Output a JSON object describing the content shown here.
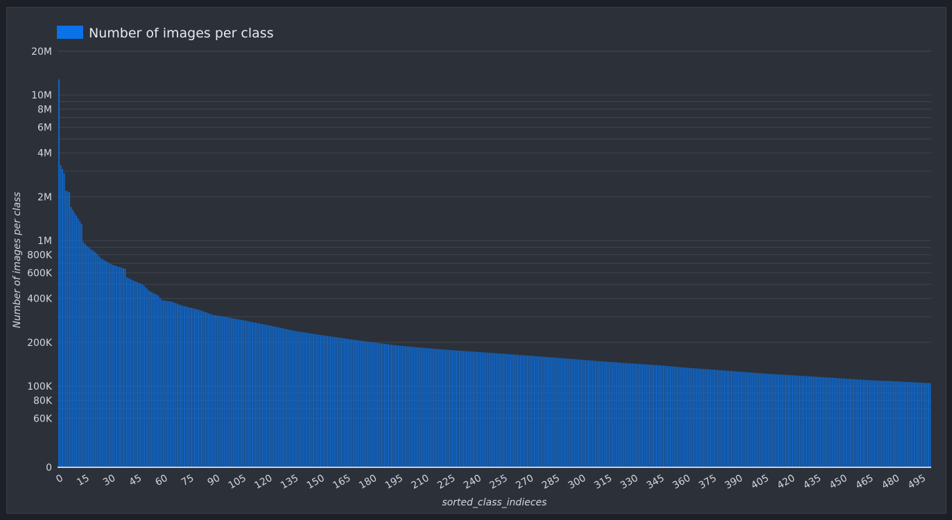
{
  "chart_data": {
    "type": "bar",
    "legend": {
      "label": "Number of images per class",
      "color": "#0a72e8",
      "position": "top-left"
    },
    "xlabel": "sorted_class_indieces",
    "ylabel": "Number of images per class",
    "yscale": "log",
    "grid": true,
    "y_ticks": [
      "20M",
      "10M",
      "8M",
      "6M",
      "4M",
      "2M",
      "1M",
      "800K",
      "600K",
      "400K",
      "200K",
      "100K",
      "80K",
      "60K",
      "0"
    ],
    "x_ticks": [
      "0",
      "15",
      "30",
      "45",
      "60",
      "75",
      "90",
      "105",
      "120",
      "135",
      "150",
      "165",
      "180",
      "195",
      "210",
      "225",
      "240",
      "255",
      "270",
      "285",
      "300",
      "315",
      "330",
      "345",
      "360",
      "375",
      "390",
      "405",
      "420",
      "435",
      "450",
      "465",
      "480",
      "495"
    ],
    "n_classes": 501,
    "value_anchors": [
      [
        0,
        12800000
      ],
      [
        1,
        3300000
      ],
      [
        2,
        3100000
      ],
      [
        3,
        2900000
      ],
      [
        4,
        2200000
      ],
      [
        6,
        2150000
      ],
      [
        7,
        1700000
      ],
      [
        9,
        1550000
      ],
      [
        11,
        1420000
      ],
      [
        13,
        1300000
      ],
      [
        14,
        980000
      ],
      [
        16,
        920000
      ],
      [
        18,
        880000
      ],
      [
        21,
        830000
      ],
      [
        24,
        760000
      ],
      [
        27,
        720000
      ],
      [
        29,
        700000
      ],
      [
        31,
        680000
      ],
      [
        38,
        640000
      ],
      [
        39,
        560000
      ],
      [
        43,
        530000
      ],
      [
        48,
        500000
      ],
      [
        52,
        450000
      ],
      [
        57,
        420000
      ],
      [
        59,
        390000
      ],
      [
        65,
        380000
      ],
      [
        70,
        360000
      ],
      [
        76,
        345000
      ],
      [
        82,
        330000
      ],
      [
        88,
        310000
      ],
      [
        95,
        300000
      ],
      [
        105,
        285000
      ],
      [
        115,
        270000
      ],
      [
        125,
        255000
      ],
      [
        135,
        240000
      ],
      [
        150,
        225000
      ],
      [
        165,
        212000
      ],
      [
        180,
        200000
      ],
      [
        195,
        190000
      ],
      [
        210,
        183000
      ],
      [
        225,
        177000
      ],
      [
        240,
        172000
      ],
      [
        255,
        167000
      ],
      [
        270,
        162000
      ],
      [
        285,
        157000
      ],
      [
        300,
        152000
      ],
      [
        315,
        147000
      ],
      [
        330,
        143000
      ],
      [
        345,
        139000
      ],
      [
        360,
        134000
      ],
      [
        375,
        130000
      ],
      [
        390,
        126000
      ],
      [
        405,
        122000
      ],
      [
        420,
        119000
      ],
      [
        435,
        116000
      ],
      [
        450,
        113000
      ],
      [
        465,
        110000
      ],
      [
        480,
        108000
      ],
      [
        500,
        105000
      ]
    ]
  }
}
